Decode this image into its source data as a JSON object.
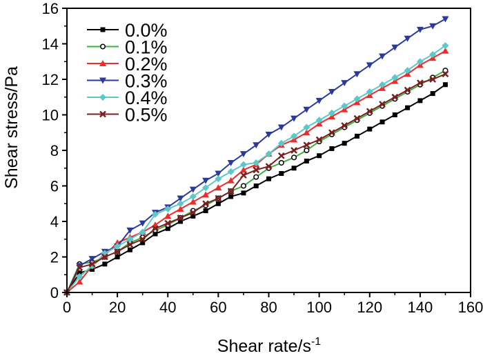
{
  "chart_data": {
    "type": "line",
    "title": "",
    "xlabel": "Shear rate/s",
    "xlabel_superscript": "-1",
    "ylabel": "Shear stress/Pa",
    "xlim": [
      0,
      160
    ],
    "ylim": [
      0,
      16
    ],
    "xticks": [
      0,
      20,
      40,
      60,
      80,
      100,
      120,
      140,
      160
    ],
    "yticks": [
      0,
      2,
      4,
      6,
      8,
      10,
      12,
      14,
      16
    ],
    "grid": false,
    "legend_position": "top-left",
    "x": [
      0,
      5,
      10,
      15,
      20,
      25,
      30,
      35,
      40,
      45,
      50,
      55,
      60,
      65,
      70,
      75,
      80,
      85,
      90,
      95,
      100,
      105,
      110,
      115,
      120,
      125,
      130,
      135,
      140,
      145,
      150
    ],
    "series": [
      {
        "name": "0.0%",
        "color": "#000000",
        "marker": "square",
        "values": [
          0,
          1.1,
          1.3,
          1.6,
          2.0,
          2.4,
          2.8,
          3.3,
          3.6,
          4.0,
          4.3,
          4.6,
          5.0,
          5.4,
          5.6,
          6.0,
          6.4,
          6.7,
          7.0,
          7.4,
          7.7,
          8.1,
          8.4,
          8.8,
          9.2,
          9.6,
          10.0,
          10.4,
          10.8,
          11.2,
          11.7
        ]
      },
      {
        "name": "0.1%",
        "color": "#3cb043",
        "marker": "circle-open",
        "values": [
          0,
          1.6,
          1.7,
          2.0,
          2.3,
          2.8,
          3.1,
          3.5,
          3.8,
          4.2,
          4.6,
          4.9,
          5.3,
          5.7,
          6.0,
          6.5,
          7.0,
          7.3,
          7.6,
          8.0,
          8.5,
          8.9,
          9.3,
          9.7,
          10.1,
          10.5,
          10.9,
          11.3,
          11.7,
          12.1,
          12.5
        ]
      },
      {
        "name": "0.2%",
        "color": "#ef2b2b",
        "marker": "triangle-up",
        "values": [
          0,
          0.6,
          1.5,
          2.1,
          2.8,
          3.1,
          3.4,
          3.8,
          4.3,
          4.7,
          5.1,
          5.5,
          5.9,
          6.3,
          6.9,
          7.2,
          7.8,
          8.3,
          8.6,
          9.0,
          9.5,
          9.9,
          10.3,
          10.7,
          11.1,
          11.5,
          11.9,
          12.3,
          12.8,
          13.2,
          13.6
        ]
      },
      {
        "name": "0.3%",
        "color": "#2b3a9a",
        "marker": "triangle-down",
        "values": [
          0,
          1.5,
          1.9,
          2.3,
          2.6,
          3.5,
          3.9,
          4.5,
          4.8,
          5.3,
          5.8,
          6.3,
          6.7,
          7.3,
          7.8,
          8.3,
          8.9,
          9.3,
          9.8,
          10.3,
          10.8,
          11.3,
          11.8,
          12.3,
          12.8,
          13.3,
          13.8,
          14.3,
          14.8,
          15.0,
          15.4
        ]
      },
      {
        "name": "0.4%",
        "color": "#5cc8c8",
        "marker": "diamond",
        "values": [
          0,
          0.9,
          1.5,
          2.2,
          2.6,
          3.0,
          3.4,
          4.4,
          4.7,
          5.0,
          5.4,
          5.9,
          6.4,
          6.8,
          7.2,
          7.3,
          7.8,
          8.4,
          8.8,
          9.3,
          9.7,
          10.1,
          10.5,
          10.9,
          11.3,
          11.7,
          12.1,
          12.5,
          13.0,
          13.4,
          13.9
        ]
      },
      {
        "name": "0.5%",
        "color": "#7a2020",
        "marker": "x",
        "values": [
          0,
          1.4,
          1.6,
          2.0,
          2.3,
          2.7,
          3.0,
          3.6,
          3.9,
          4.2,
          4.5,
          5.0,
          5.3,
          5.7,
          6.6,
          6.9,
          7.1,
          7.7,
          8.0,
          8.3,
          8.6,
          9.0,
          9.4,
          9.8,
          10.2,
          10.6,
          11.0,
          11.4,
          11.8,
          12.0,
          12.3
        ]
      }
    ]
  }
}
